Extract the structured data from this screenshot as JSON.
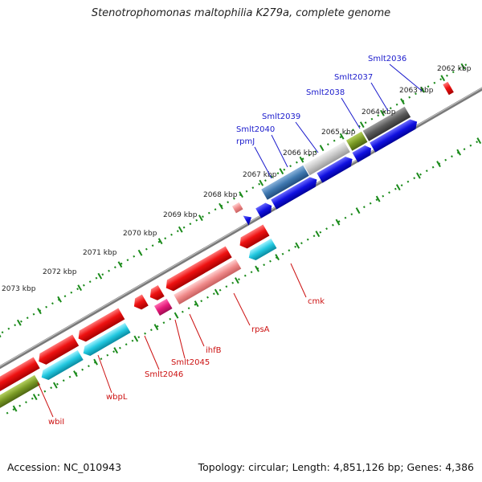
{
  "title": "Stenotrophomonas maltophilia K279a, complete genome",
  "footer": {
    "accession": "Accession: NC_010943",
    "summary": "Topology: circular; Length: 4,851,126 bp; Genes: 4,386"
  },
  "ticks": [
    "2062 kbp",
    "2063 kbp",
    "2064 kbp",
    "2065 kbp",
    "2066 kbp",
    "2067 kbp",
    "2068 kbp",
    "2069 kbp",
    "2070 kbp",
    "2071 kbp",
    "2072 kbp",
    "2073 kbp"
  ],
  "colors": {
    "red": "#ee1111",
    "pink": "#f08a8a",
    "magenta": "#e6197a",
    "cyan": "#22c8e0",
    "olive": "#7a9a25",
    "blue": "#1010e0",
    "steelblue": "#3f78b0",
    "gray": "#9a9a9a",
    "lightgray": "#c8c8c8",
    "darkgray": "#5a5a5a",
    "axis_green": "#1a8a1a",
    "label_blue": "#1a1acc",
    "label_red": "#cc1111"
  },
  "top_labels": [
    "Smlt2036",
    "Smlt2037",
    "Smlt2038",
    "Smlt2039",
    "Smlt2040",
    "rpmJ"
  ],
  "bottom_labels": [
    "cmk",
    "rpsA",
    "ihfB",
    "Smlt2045",
    "Smlt2046",
    "wbpL",
    "wbiI"
  ]
}
